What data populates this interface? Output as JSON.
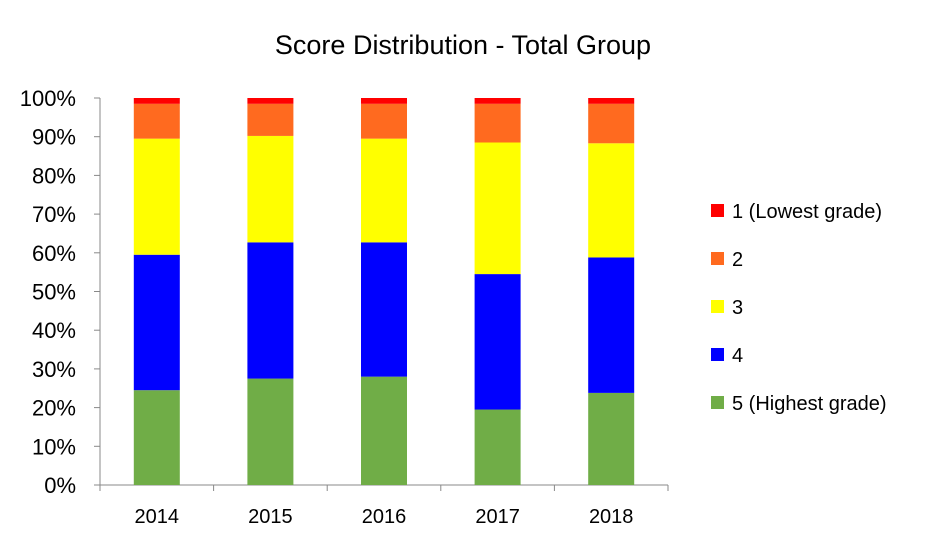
{
  "chart_data": {
    "type": "bar",
    "stacked": true,
    "title": "Score Distribution - Total Group",
    "xlabel": "",
    "ylabel": "",
    "ylim": [
      0,
      100
    ],
    "yticks": [
      "0%",
      "10%",
      "20%",
      "30%",
      "40%",
      "50%",
      "60%",
      "70%",
      "80%",
      "90%",
      "100%"
    ],
    "categories": [
      "2014",
      "2015",
      "2016",
      "2017",
      "2018"
    ],
    "series": [
      {
        "name": "5 (Highest grade)",
        "color": "#70AD47",
        "values": [
          24.5,
          27.5,
          28.0,
          19.5,
          23.8
        ]
      },
      {
        "name": "4",
        "color": "#0000FF",
        "values": [
          35.0,
          35.2,
          34.7,
          35.0,
          35.0
        ]
      },
      {
        "name": "3",
        "color": "#FFFF00",
        "values": [
          30.0,
          27.5,
          26.8,
          34.0,
          29.5
        ]
      },
      {
        "name": "2",
        "color": "#FF6A1F",
        "values": [
          9.0,
          8.3,
          9.0,
          10.0,
          10.2
        ]
      },
      {
        "name": "1 (Lowest grade)",
        "color": "#FF0000",
        "values": [
          1.5,
          1.5,
          1.5,
          1.5,
          1.5
        ]
      }
    ],
    "legend_order": [
      "1 (Lowest grade)",
      "2",
      "3",
      "4",
      "5 (Highest grade)"
    ],
    "legend_position": "right",
    "grid": false
  }
}
